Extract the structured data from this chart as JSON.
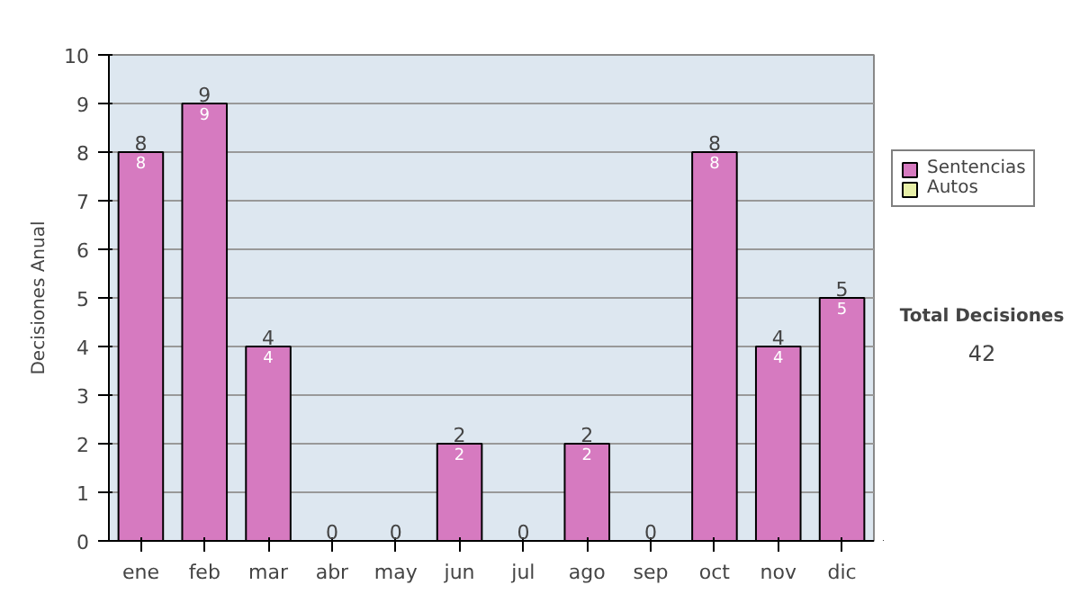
{
  "chart_data": {
    "type": "bar",
    "stacked": true,
    "ylabel": "Decisiones Anual",
    "categories": [
      "ene",
      "feb",
      "mar",
      "abr",
      "may",
      "jun",
      "jul",
      "ago",
      "sep",
      "oct",
      "nov",
      "dic"
    ],
    "series": [
      {
        "name": "Sentencias",
        "color": "#d67ac0",
        "values": [
          8,
          9,
          4,
          0,
          0,
          2,
          0,
          2,
          0,
          8,
          4,
          5
        ],
        "value_labels": [
          "8",
          "9",
          "4",
          null,
          null,
          "2",
          null,
          "2",
          null,
          "8",
          "4",
          "5"
        ]
      },
      {
        "name": "Autos",
        "color": "#e8f0a8",
        "values": [
          0,
          0,
          0,
          0,
          0,
          0,
          0,
          0,
          0,
          0,
          0,
          0
        ]
      }
    ],
    "totals": [
      "8",
      "9",
      "4",
      "0",
      "0",
      "2",
      "0",
      "2",
      "0",
      "8",
      "4",
      "5"
    ],
    "ylim": [
      0,
      10
    ],
    "yticks": [
      0,
      1,
      2,
      3,
      4,
      5,
      6,
      7,
      8,
      9,
      10
    ],
    "grid": "y",
    "legend": "right",
    "annotations": [
      "Total Decisiones",
      "42"
    ]
  }
}
